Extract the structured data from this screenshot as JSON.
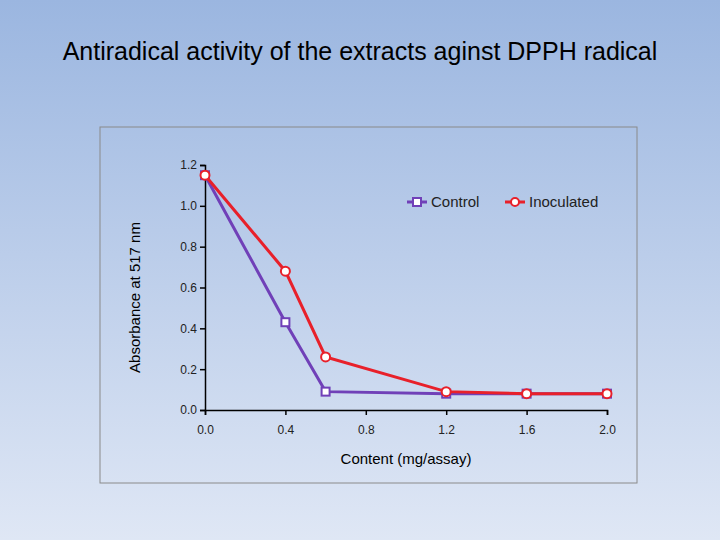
{
  "chart_data": {
    "type": "line",
    "title": "Antiradical activity of the extracts aginst DPPH radical",
    "x_label": "Content (mg/assay)",
    "y_label": "Absorbance at 517 nm",
    "x": [
      0,
      0.4,
      0.6,
      1.2,
      1.6,
      2.0
    ],
    "series": [
      {
        "name": "Control",
        "color": "#7040b8",
        "marker": "square",
        "values": [
          1.15,
          0.43,
          0.09,
          0.08,
          0.08,
          0.08
        ]
      },
      {
        "name": "Inoculated",
        "color": "#e8202a",
        "marker": "circle",
        "values": [
          1.15,
          0.68,
          0.26,
          0.09,
          0.08,
          0.08
        ]
      }
    ],
    "xlim": [
      0,
      2
    ],
    "xticks": [
      {
        "value": 0,
        "label": "0.0"
      },
      {
        "value": 0.4,
        "label": "0.4"
      },
      {
        "value": 0.8,
        "label": "0.8"
      },
      {
        "value": 1.2,
        "label": "1.2"
      },
      {
        "value": 1.6,
        "label": "1.6"
      },
      {
        "value": 2,
        "label": "2.0"
      }
    ],
    "ylim": [
      0,
      1.2
    ],
    "yticks": [
      {
        "value": 0,
        "label": "0.0"
      },
      {
        "value": 0.2,
        "label": "0.2"
      },
      {
        "value": 0.4,
        "label": "0.4"
      },
      {
        "value": 0.6,
        "label": "0.6"
      },
      {
        "value": 0.8,
        "label": "0.8"
      },
      {
        "value": 1,
        "label": "1.0"
      },
      {
        "value": 1.2,
        "label": "1.2"
      }
    ],
    "grid": false,
    "legend": "top-right"
  }
}
